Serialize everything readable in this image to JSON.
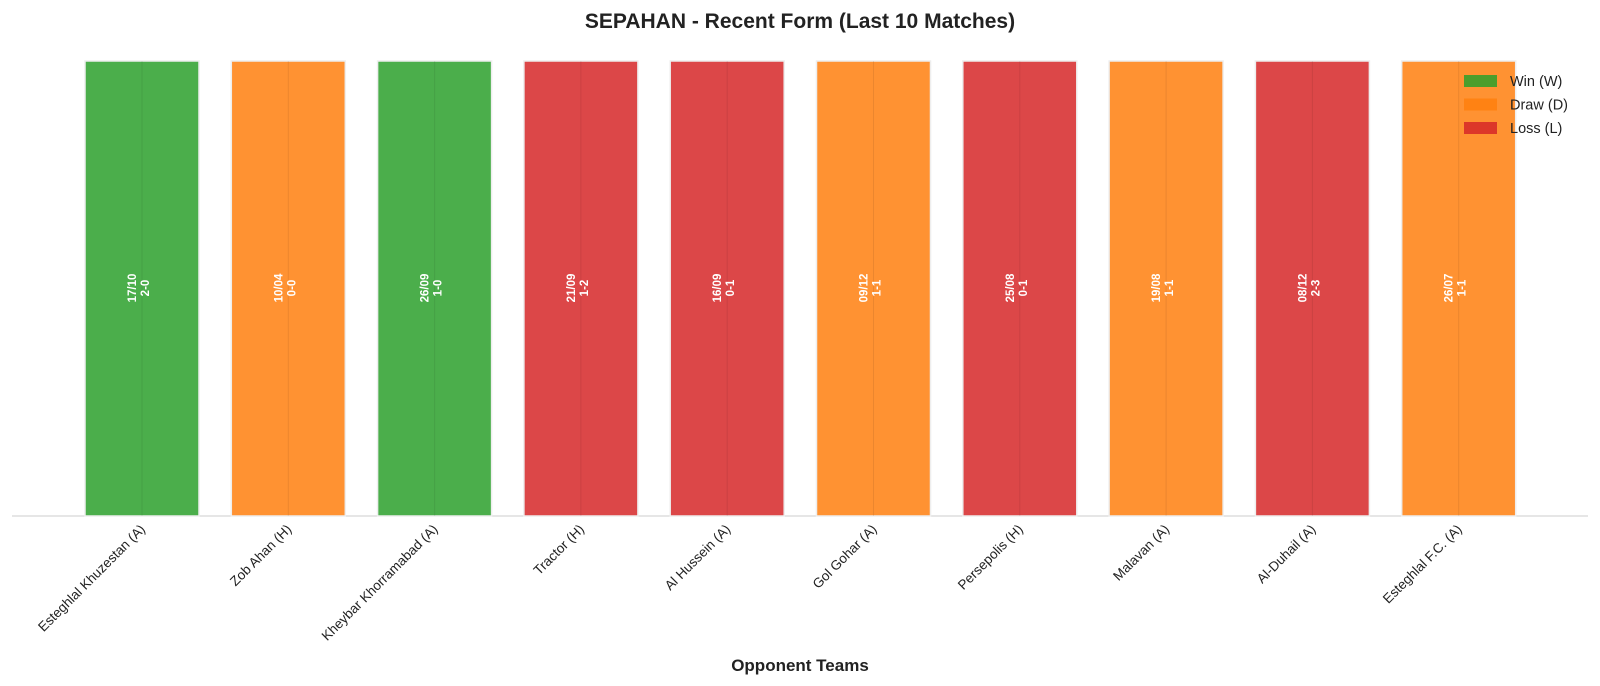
{
  "chart_data": {
    "type": "bar",
    "title": "SEPAHAN - Recent Form (Last 10 Matches)",
    "x_label": "Opponent Teams",
    "categories": [
      "Esteghlal Khuzestan (A)",
      "Zob Ahan (H)",
      "Kheybar Khorramabad (A)",
      "Tractor (H)",
      "Al Hussein (A)",
      "Gol Gohar (A)",
      "Persepolis (H)",
      "Malavan (A)",
      "Al-Duhail (A)",
      "Esteghlal F.C. (A)"
    ],
    "dates": [
      "17/10",
      "10/04",
      "26/09",
      "21/09",
      "16/09",
      "09/12",
      "25/08",
      "19/08",
      "08/12",
      "26/07"
    ],
    "scores": [
      "2-0",
      "0-0",
      "1-0",
      "1-2",
      "0-1",
      "1-1",
      "0-1",
      "1-1",
      "2-3",
      "1-1"
    ],
    "series": [
      {
        "name": "Win (W)",
        "color": "#2ca02c",
        "values": [
          1,
          null,
          1,
          null,
          null,
          null,
          null,
          null,
          null,
          null
        ]
      },
      {
        "name": "Draw (D)",
        "color": "#ff7f0e",
        "values": [
          null,
          1,
          null,
          null,
          null,
          1,
          null,
          1,
          null,
          1
        ]
      },
      {
        "name": "Loss (L)",
        "color": "#d62728",
        "values": [
          null,
          null,
          null,
          1,
          1,
          null,
          1,
          null,
          1,
          null
        ]
      }
    ],
    "ylim": [
      0,
      1
    ],
    "grid": true,
    "legend": "upper right"
  }
}
